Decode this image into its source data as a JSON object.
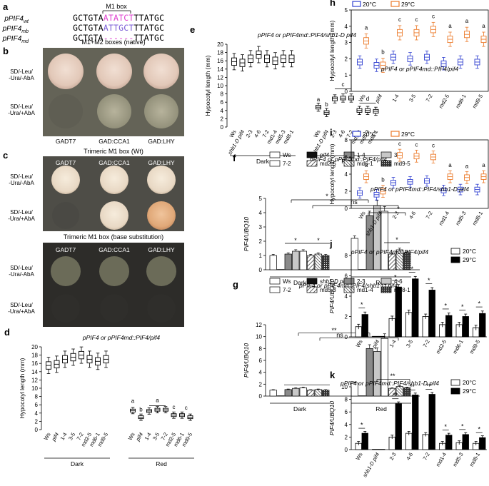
{
  "figure": {
    "panel_a": {
      "letter": "a",
      "box_title": "M1 box",
      "rows": [
        {
          "label_main": "pPIF4",
          "label_sub": "wt",
          "seq_left": "GCTGTA",
          "seq_mid": "ATATCT",
          "seq_right": "TTATGC"
        },
        {
          "label_main": "pPIF4",
          "label_sub": "mb",
          "seq_left": "GCTGTA",
          "seq_mid": "ATTGCT",
          "seq_right": "TTATGC"
        },
        {
          "label_main": "pPIF4",
          "label_sub": "md",
          "seq_left": "GCTGTA",
          "seq_mid": "------",
          "seq_right": "TTATGC"
        }
      ],
      "colors": {
        "magenta": "#e040d0",
        "purple": "#7a5cd6"
      }
    },
    "panel_b": {
      "letter": "b",
      "title": "M1+M2 boxes (native)",
      "row_labels": [
        "SD/-Leu/\n-Ura/-AbA",
        "SD/-Leu/\n-Ura/+AbA"
      ],
      "cols": [
        "GADT7",
        "GAD:CCA1",
        "GAD:LHY"
      ]
    },
    "panel_c": {
      "letter": "c",
      "title_top": "Trimeric M1 box (Wt)",
      "title_bottom": "Trimeric M1 box (base substitution)",
      "row_labels": [
        "SD/-Leu/\n-Ura/-AbA",
        "SD/-Leu/\n-Ura/+AbA",
        "SD/-Leu/\n-Ura/-AbA",
        "SD/-Leu/\n-Ura/+AbA"
      ],
      "cols": [
        "GADT7",
        "GAD:CCA1",
        "GAD:LHY"
      ]
    },
    "panel_d": {
      "letter": "d",
      "title": "pPIF4 or pPIF4md::PIF4/pif4",
      "ylabel": "Hypocotyl length (mm)",
      "yticks": [
        "0",
        "2",
        "4",
        "6",
        "8",
        "10",
        "12",
        "14",
        "16",
        "18",
        "20"
      ],
      "xticks": [
        "Ws",
        "pif4",
        "1-4",
        "3-5",
        "7-2",
        "md2-5",
        "md6-1",
        "md9-5"
      ],
      "groups": [
        "Dark",
        "Red"
      ],
      "letters": [
        "a",
        "b",
        "a",
        "c",
        "c"
      ]
    },
    "panel_e": {
      "letter": "e",
      "title": "pPIF4 or pPIF4md::PIF4/shb1-D pif4",
      "ylabel": "Hypocotyl length (mm)",
      "yticks": [
        "0",
        "2",
        "4",
        "6",
        "8",
        "10",
        "12",
        "14",
        "16",
        "18",
        "20"
      ],
      "xticks": [
        "Ws",
        "shb1-D pif4",
        "2-3",
        "4-6",
        "7-2",
        "md1-4",
        "md5-3",
        "md8-1"
      ],
      "groups": [
        "Dark",
        "Red"
      ],
      "letters": [
        "a",
        "b",
        "c",
        "d"
      ]
    },
    "panel_f": {
      "letter": "f",
      "title": "pPIF4 or pPIF4md::PIF4/pif4",
      "ylabel": "PIF4/UBQ10",
      "yticks": [
        "0",
        "1",
        "2",
        "3",
        "4",
        "5"
      ],
      "legend": [
        "Ws",
        "pif4",
        "1-4",
        "3-5",
        "7-2",
        "md2-5",
        "md6-1",
        "md9-5"
      ],
      "groups": [
        "Dark",
        "Red"
      ],
      "sig": [
        "*",
        "ns",
        "*",
        "*",
        "*"
      ]
    },
    "panel_g": {
      "letter": "g",
      "title": "pPIF4 or pPIF4md::PIF4/shb1-D pif4",
      "ylabel": "PIF4/UBQ10",
      "yticks": [
        "0",
        "2",
        "4",
        "6",
        "8",
        "10",
        "12"
      ],
      "legend": [
        "Ws",
        "shb1-D pif4",
        "2-3",
        "4-6",
        "7-2",
        "md5-3",
        "md1-4",
        "md8-1"
      ],
      "groups": [
        "Dark",
        "Red"
      ],
      "sig": [
        "**",
        "ns",
        "**"
      ]
    },
    "panel_h": {
      "letter": "h",
      "legend": [
        "20°C",
        "29°C"
      ],
      "title": "pPIF4 or pPIF4md::PIF4/pif4",
      "ylabel": "Hypocotyl length (mm)",
      "yticks": [
        "0",
        "1",
        "2",
        "3",
        "4",
        "5"
      ],
      "xticks": [
        "Ws",
        "pif4",
        "1-4",
        "3-5",
        "7-2",
        "md2-5",
        "md6-1",
        "md9-5"
      ],
      "letters": [
        "a",
        "b",
        "c",
        "c",
        "c",
        "a",
        "a",
        "a"
      ]
    },
    "panel_i": {
      "letter": "i",
      "legend": [
        "20°C",
        "29°C"
      ],
      "title": "pPIF4 or pPIF4md::PIF4/shb1-D pif4",
      "ylabel": "Hypocotyl length (mm)",
      "yticks": [
        "0",
        "2",
        "4",
        "6",
        "8"
      ],
      "xticks": [
        "Ws",
        "shb1-D pif4",
        "2-3",
        "4-6",
        "7-2",
        "md1-4",
        "md5-3",
        "md8-1"
      ],
      "letters": [
        "a",
        "b",
        "c",
        "c",
        "c",
        "a",
        "a",
        "a"
      ]
    },
    "panel_j": {
      "letter": "j",
      "title": "pPIF4 or pPIF4md::PIF4/pif4",
      "legend": [
        "20°C",
        "29°C"
      ],
      "ylabel": "PIF4/UBQ10",
      "yticks": [
        "0",
        "2",
        "4",
        "6",
        "8"
      ],
      "xticks": [
        "Ws",
        "pif4",
        "1-4",
        "3-5",
        "7-2",
        "md2-5",
        "md6-1",
        "md9-5"
      ],
      "sig": [
        "*",
        "*",
        "*",
        "*",
        "*",
        "*",
        "*"
      ]
    },
    "panel_k": {
      "letter": "k",
      "title": "pPIF4 or pPIF4md::PIF4/shb1-D pif4",
      "legend": [
        "20°C",
        "29°C"
      ],
      "ylabel": "PIF4/UBQ10",
      "yticks": [
        "0",
        "2",
        "4",
        "6",
        "8",
        "10"
      ],
      "xticks": [
        "Ws",
        "shb1-D pif4",
        "2-3",
        "4-6",
        "7-2",
        "md1-4",
        "md5-3",
        "md8-1"
      ],
      "sig": [
        "*",
        "**",
        "**",
        "**",
        "*",
        "*",
        "*"
      ]
    }
  },
  "chart_data": [
    {
      "panel": "d",
      "type": "box",
      "title": "pPIF4 or pPIF4md::PIF4/pif4",
      "ylabel": "Hypocotyl length (mm)",
      "ylim": [
        0,
        20
      ],
      "categories": [
        "Ws",
        "pif4",
        "1-4",
        "3-5",
        "7-2",
        "md2-5",
        "md6-1",
        "md9-5"
      ],
      "series": [
        {
          "name": "Dark",
          "medians": [
            15.5,
            15.8,
            17.0,
            17.5,
            18.0,
            17.0,
            16.5,
            17.0
          ]
        },
        {
          "name": "Red",
          "medians": [
            4.6,
            3.0,
            4.5,
            4.8,
            4.8,
            3.5,
            3.5,
            3.0
          ]
        }
      ]
    },
    {
      "panel": "e",
      "type": "box",
      "title": "pPIF4 or pPIF4md::PIF4/shb1-D pif4",
      "ylabel": "Hypocotyl length (mm)",
      "ylim": [
        0,
        20
      ],
      "categories": [
        "Ws",
        "shb1-D pif4",
        "2-3",
        "4-6",
        "7-2",
        "md1-4",
        "md5-3",
        "md8-1"
      ],
      "series": [
        {
          "name": "Dark",
          "medians": [
            15.8,
            15.5,
            16.5,
            17.5,
            16.5,
            16.0,
            16.5,
            16.5
          ]
        },
        {
          "name": "Red",
          "medians": [
            4.8,
            3.5,
            6.8,
            7.0,
            7.0,
            4.0,
            4.0,
            3.8
          ]
        }
      ]
    },
    {
      "panel": "f",
      "type": "bar",
      "title": "pPIF4 or pPIF4md::PIF4/pif4",
      "ylabel": "PIF4/UBQ10",
      "ylim": [
        0,
        5
      ],
      "categories": [
        "Dark",
        "Red"
      ],
      "series": [
        {
          "name": "Ws",
          "values": [
            1.0,
            2.2
          ]
        },
        {
          "name": "pif4",
          "values": [
            0.02,
            0.02
          ]
        },
        {
          "name": "1-4",
          "values": [
            1.1,
            3.8
          ]
        },
        {
          "name": "3-5",
          "values": [
            1.3,
            4.5
          ]
        },
        {
          "name": "7-2",
          "values": [
            1.3,
            4.1
          ]
        },
        {
          "name": "md2-5",
          "values": [
            1.0,
            1.1
          ]
        },
        {
          "name": "md6-1",
          "values": [
            1.1,
            1.4
          ]
        },
        {
          "name": "md9-5",
          "values": [
            1.0,
            1.2
          ]
        }
      ]
    },
    {
      "panel": "g",
      "type": "bar",
      "title": "pPIF4 or pPIF4md::PIF4/shb1-D pif4",
      "ylabel": "PIF4/UBQ10",
      "ylim": [
        0,
        12
      ],
      "categories": [
        "Dark",
        "Red"
      ],
      "series": [
        {
          "name": "Ws",
          "values": [
            1.0,
            2.2
          ]
        },
        {
          "name": "shb1-D pif4",
          "values": [
            0.05,
            0.05
          ]
        },
        {
          "name": "2-3",
          "values": [
            1.1,
            8.0
          ]
        },
        {
          "name": "4-6",
          "values": [
            1.3,
            7.5
          ]
        },
        {
          "name": "7-2",
          "values": [
            1.4,
            9.7
          ]
        },
        {
          "name": "md5-3",
          "values": [
            1.0,
            1.3
          ]
        },
        {
          "name": "md1-4",
          "values": [
            1.1,
            1.6
          ]
        },
        {
          "name": "md8-1",
          "values": [
            1.0,
            1.4
          ]
        }
      ]
    },
    {
      "panel": "h",
      "type": "box",
      "title": "pPIF4 or pPIF4md::PIF4/pif4",
      "ylabel": "Hypocotyl length (mm)",
      "ylim": [
        0,
        5
      ],
      "categories": [
        "Ws",
        "pif4",
        "1-4",
        "3-5",
        "7-2",
        "md2-5",
        "md6-1",
        "md9-5"
      ],
      "series": [
        {
          "name": "20°C",
          "medians": [
            1.8,
            1.6,
            2.1,
            2.0,
            2.1,
            1.7,
            1.8,
            1.8
          ]
        },
        {
          "name": "29°C",
          "medians": [
            3.1,
            1.6,
            3.6,
            3.6,
            3.8,
            3.2,
            3.5,
            3.2
          ]
        }
      ]
    },
    {
      "panel": "i",
      "type": "box",
      "title": "pPIF4 or pPIF4md::PIF4/shb1-D pif4",
      "ylabel": "Hypocotyl length (mm)",
      "ylim": [
        0,
        8
      ],
      "categories": [
        "Ws",
        "shb1-D pif4",
        "2-3",
        "4-6",
        "7-2",
        "md1-4",
        "md5-3",
        "md8-1"
      ],
      "series": [
        {
          "name": "20°C",
          "medians": [
            1.8,
            1.6,
            3.0,
            3.1,
            3.2,
            2.1,
            2.2,
            2.2
          ]
        },
        {
          "name": "29°C",
          "medians": [
            3.7,
            2.0,
            6.2,
            6.1,
            6.0,
            3.7,
            3.6,
            3.7
          ]
        }
      ]
    },
    {
      "panel": "j",
      "type": "bar",
      "title": "pPIF4 or pPIF4md::PIF4/pif4",
      "ylabel": "PIF4/UBQ10",
      "ylim": [
        0,
        8
      ],
      "categories": [
        "Ws",
        "pif4",
        "1-4",
        "3-5",
        "7-2",
        "md2-5",
        "md6-1",
        "md9-5"
      ],
      "series": [
        {
          "name": "20°C",
          "values": [
            1.0,
            0.05,
            1.8,
            2.4,
            2.0,
            1.2,
            1.2,
            0.9
          ]
        },
        {
          "name": "29°C",
          "values": [
            2.2,
            0.05,
            4.9,
            5.7,
            4.6,
            2.1,
            2.0,
            2.3
          ]
        }
      ]
    },
    {
      "panel": "k",
      "type": "bar",
      "title": "pPIF4 or pPIF4md::PIF4/shb1-D pif4",
      "ylabel": "PIF4/UBQ10",
      "ylim": [
        0,
        10
      ],
      "categories": [
        "Ws",
        "shb1-D pif4",
        "2-3",
        "4-6",
        "7-2",
        "md1-4",
        "md5-3",
        "md8-1"
      ],
      "series": [
        {
          "name": "20°C",
          "values": [
            1.0,
            0.05,
            2.0,
            2.6,
            2.4,
            1.0,
            1.1,
            1.0
          ]
        },
        {
          "name": "29°C",
          "values": [
            2.6,
            0.05,
            7.3,
            8.7,
            8.8,
            2.3,
            2.4,
            1.9
          ]
        }
      ]
    }
  ]
}
